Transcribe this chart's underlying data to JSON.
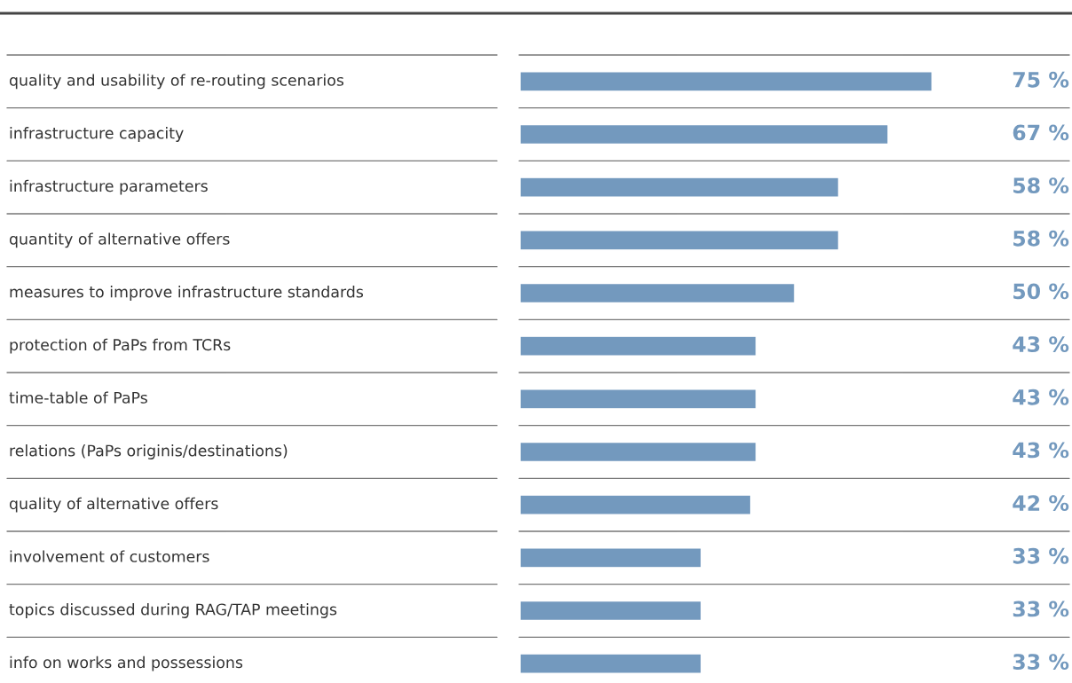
{
  "chart_data": {
    "type": "bar",
    "orientation": "horizontal",
    "categories": [
      "quality and usability of re-routing scenarios",
      "infrastructure capacity",
      "infrastructure parameters",
      "quantity of alternative offers",
      "measures to improve infrastructure standards",
      "protection of PaPs from TCRs",
      "time-table of PaPs",
      "relations (PaPs originis/destinations)",
      "quality of alternative offers",
      "involvement of customers",
      "topics discussed during RAG/TAP meetings",
      "info on works and possessions"
    ],
    "values": [
      75,
      67,
      58,
      58,
      50,
      43,
      43,
      43,
      42,
      33,
      33,
      33
    ],
    "value_labels": [
      "75 %",
      "67 %",
      "58 %",
      "58 %",
      "50 %",
      "43 %",
      "43 %",
      "43 %",
      "42 %",
      "33 %",
      "33 %",
      "33 %"
    ],
    "color": "#7399be",
    "xlim": [
      0,
      100
    ],
    "tick_labels": "y"
  }
}
